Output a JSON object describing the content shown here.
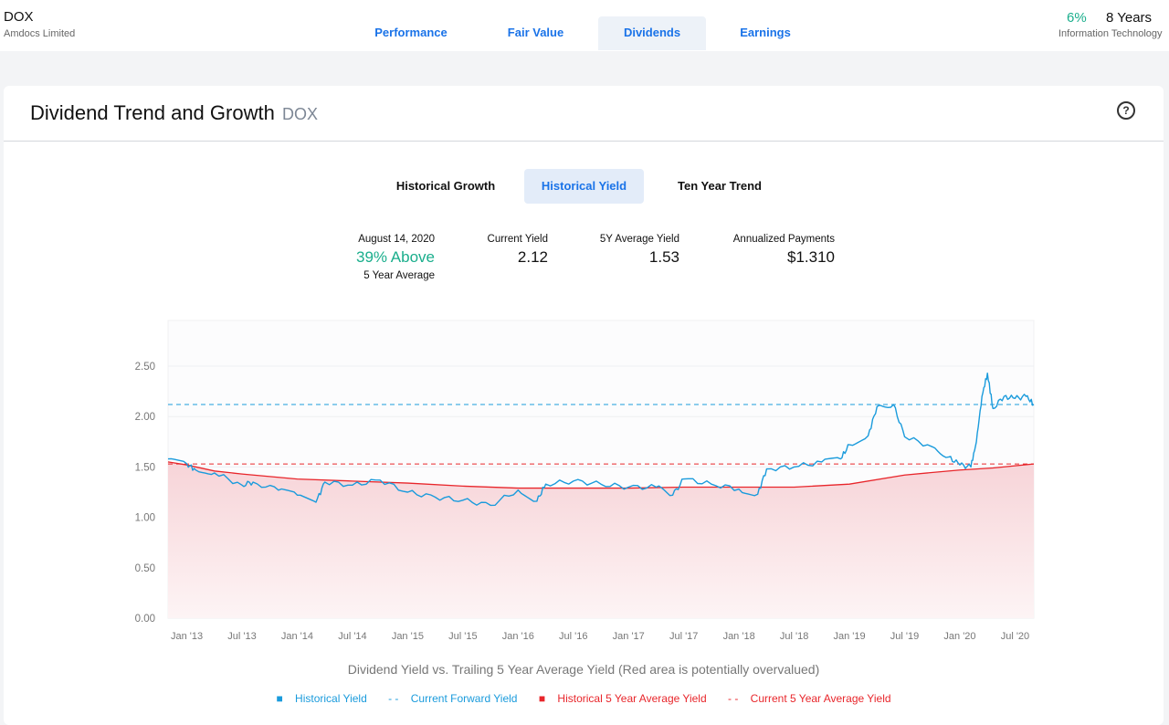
{
  "header": {
    "ticker": "DOX",
    "company": "Amdocs Limited",
    "growth_pct": "6%",
    "years": "8 Years",
    "sector": "Information Technology",
    "tabs": [
      {
        "label": "Performance",
        "active": false
      },
      {
        "label": "Fair Value",
        "active": false
      },
      {
        "label": "Dividends",
        "active": true
      },
      {
        "label": "Earnings",
        "active": false
      }
    ]
  },
  "card": {
    "title": "Dividend Trend and Growth",
    "symbol": "DOX",
    "help_icon": "?",
    "subtabs": [
      {
        "label": "Historical Growth",
        "active": false
      },
      {
        "label": "Historical Yield",
        "active": true
      },
      {
        "label": "Ten Year Trend",
        "active": false
      }
    ],
    "stats": {
      "date": "August 14, 2020",
      "above_text": "39% Above",
      "above_sub": "5 Year Average",
      "current_yield_label": "Current Yield",
      "current_yield": "2.12",
      "avg_yield_label": "5Y Average Yield",
      "avg_yield": "1.53",
      "payments_label": "Annualized Payments",
      "payments": "$1.310"
    },
    "caption": "Dividend Yield vs. Trailing 5 Year Average Yield (Red area is potentially overvalued)",
    "legend": [
      {
        "marker": "■",
        "label": "Historical Yield",
        "color": "#1a9bdc"
      },
      {
        "marker": "- -",
        "label": "Current Forward Yield",
        "color": "#1a9bdc"
      },
      {
        "marker": "■",
        "label": "Historical 5 Year Average Yield",
        "color": "#e8262b"
      },
      {
        "marker": "- -",
        "label": "Current 5 Year Average Yield",
        "color": "#e8262b"
      }
    ]
  },
  "colors": {
    "accent": "#1a73e8",
    "green": "#1aae8c",
    "yield_line": "#1a9bdc",
    "avg_line": "#e8262b"
  },
  "chart_data": {
    "type": "line",
    "x_ticks": [
      "Jan '13",
      "Jul '13",
      "Jan '14",
      "Jul '14",
      "Jan '15",
      "Jul '15",
      "Jan '16",
      "Jul '16",
      "Jan '17",
      "Jul '17",
      "Jan '18",
      "Jul '18",
      "Jan '19",
      "Jul '19",
      "Jan '20",
      "Jul '20"
    ],
    "y_ticks": [
      "0.00",
      "0.50",
      "1.00",
      "1.50",
      "2.00",
      "2.50"
    ],
    "ylim": [
      0,
      2.5
    ],
    "xlim": [
      2012.83,
      2020.67
    ],
    "current_forward_yield": 2.12,
    "current_5y_avg_yield": 1.53,
    "series": [
      {
        "name": "Historical Yield",
        "x": [
          2012.83,
          2013.0,
          2013.08,
          2013.25,
          2013.5,
          2013.6,
          2013.83,
          2014.0,
          2014.17,
          2014.25,
          2014.5,
          2014.75,
          2015.0,
          2015.25,
          2015.5,
          2015.75,
          2016.0,
          2016.17,
          2016.25,
          2016.5,
          2016.75,
          2017.0,
          2017.25,
          2017.4,
          2017.5,
          2017.75,
          2018.0,
          2018.17,
          2018.25,
          2018.5,
          2018.75,
          2018.92,
          2019.0,
          2019.17,
          2019.25,
          2019.4,
          2019.5,
          2019.75,
          2019.9,
          2020.0,
          2020.1,
          2020.15,
          2020.2,
          2020.25,
          2020.3,
          2020.4,
          2020.5,
          2020.6,
          2020.67
        ],
        "y": [
          1.58,
          1.53,
          1.47,
          1.44,
          1.32,
          1.35,
          1.27,
          1.22,
          1.15,
          1.35,
          1.32,
          1.37,
          1.25,
          1.2,
          1.17,
          1.12,
          1.27,
          1.16,
          1.33,
          1.36,
          1.33,
          1.3,
          1.3,
          1.22,
          1.38,
          1.33,
          1.28,
          1.23,
          1.48,
          1.5,
          1.55,
          1.58,
          1.72,
          1.81,
          2.1,
          2.12,
          1.8,
          1.7,
          1.6,
          1.52,
          1.5,
          1.75,
          2.2,
          2.43,
          2.08,
          2.2,
          2.18,
          2.2,
          2.12
        ]
      },
      {
        "name": "Historical 5 Year Average Yield",
        "x": [
          2012.83,
          2013.0,
          2013.25,
          2013.5,
          2014.0,
          2014.5,
          2015.0,
          2015.5,
          2016.0,
          2016.5,
          2017.0,
          2017.5,
          2018.0,
          2018.5,
          2019.0,
          2019.5,
          2020.0,
          2020.3,
          2020.67
        ],
        "y": [
          1.55,
          1.52,
          1.46,
          1.43,
          1.38,
          1.36,
          1.34,
          1.31,
          1.29,
          1.29,
          1.29,
          1.3,
          1.3,
          1.3,
          1.33,
          1.42,
          1.47,
          1.49,
          1.53
        ]
      }
    ]
  }
}
